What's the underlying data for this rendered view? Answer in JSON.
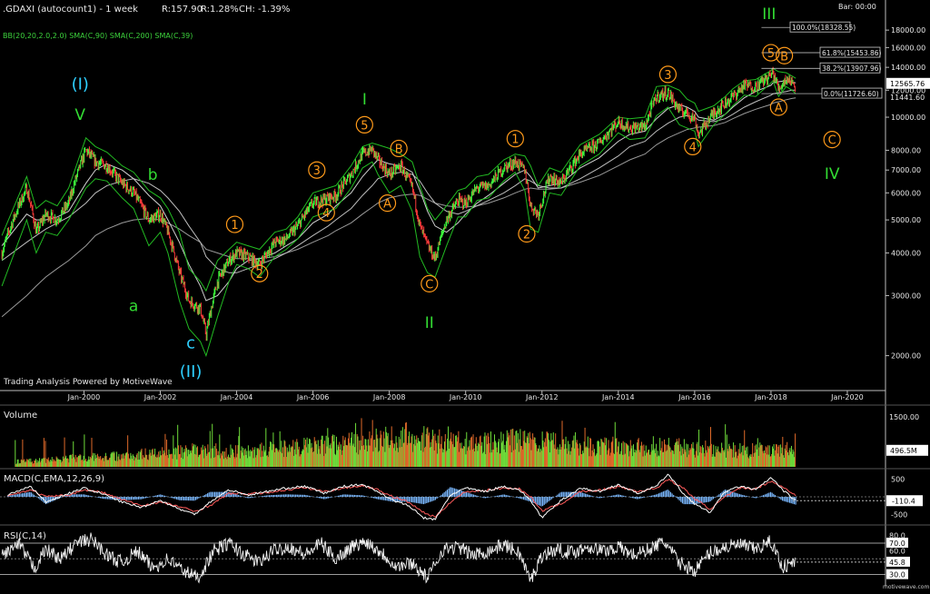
{
  "header": {
    "symbol": ".GDAXI (autocount1) - 1 week",
    "range": "R:157.90",
    "range_pct": "R:1.28%",
    "change": "CH: -1.39%",
    "indicators": "BB(20,20,2.0,2.0) SMA(C,90) SMA(C,200) SMA(C,39)",
    "bar_countdown": "Bar: 00:00"
  },
  "watermark": "Trading Analysis Powered by MotiveWave",
  "footer_brand": "motivewave.com",
  "colors": {
    "background": "#000000",
    "up_bar": "#3dff3d",
    "down_bar": "#ff3a3a",
    "orange_wave": "#ff9a1a",
    "green_wave": "#33dd33",
    "cyan_wave": "#2ed0ff",
    "boll": "#22bb22",
    "sma": "#bbbbbb"
  },
  "chart_data": [
    {
      "type": "line",
      "name": "price",
      "scale": "log",
      "ylim": [
        1600,
        21000
      ],
      "y_ticks": [
        2000,
        3000,
        4000,
        5000,
        6000,
        7000,
        8000,
        10000,
        12000,
        14000,
        16000,
        18000
      ],
      "y_tick_labels": [
        "2000.00",
        "3000.00",
        "4000.00",
        "5000.00",
        "6000.00",
        "7000.00",
        "8000.00",
        "10000.00",
        "12000.00",
        "14000.00",
        "16000.00",
        "18000.00"
      ],
      "x_ticks": [
        2000,
        2002,
        2004,
        2006,
        2008,
        2010,
        2012,
        2014,
        2016,
        2018,
        2020
      ],
      "x_tick_labels": [
        "Jan-2000",
        "Jan-2002",
        "Jan-2004",
        "Jan-2006",
        "Jan-2008",
        "Jan-2010",
        "Jan-2012",
        "Jan-2014",
        "Jan-2016",
        "Jan-2018",
        "Jan-2020"
      ],
      "xlim": [
        1997.8,
        2021.0
      ],
      "x": [
        1997.85,
        1998.5,
        1998.75,
        1999.0,
        1999.3,
        1999.6,
        2000.05,
        2000.3,
        2000.6,
        2001.0,
        2001.3,
        2001.7,
        2002.0,
        2002.2,
        2002.5,
        2002.75,
        2003.05,
        2003.2,
        2003.5,
        2003.8,
        2004.0,
        2004.3,
        2004.6,
        2005.0,
        2005.3,
        2005.6,
        2006.0,
        2006.4,
        2006.6,
        2007.0,
        2007.3,
        2007.55,
        2007.7,
        2008.0,
        2008.3,
        2008.6,
        2008.8,
        2009.0,
        2009.2,
        2009.5,
        2009.8,
        2010.0,
        2010.3,
        2010.6,
        2011.0,
        2011.3,
        2011.55,
        2011.7,
        2011.9,
        2012.2,
        2012.5,
        2013.0,
        2013.5,
        2014.0,
        2014.3,
        2014.7,
        2015.0,
        2015.3,
        2015.6,
        2015.8,
        2016.0,
        2016.1,
        2016.5,
        2016.8,
        2017.0,
        2017.3,
        2017.6,
        2018.0,
        2018.05,
        2018.2,
        2018.4,
        2018.55,
        2018.65
      ],
      "close": [
        4000,
        6200,
        4600,
        5200,
        5000,
        5600,
        8000,
        7400,
        7200,
        6400,
        6000,
        5000,
        5200,
        4600,
        3500,
        2900,
        2750,
        2300,
        3300,
        3800,
        4000,
        3900,
        3700,
        4300,
        4400,
        4800,
        5600,
        5800,
        5900,
        6800,
        7800,
        8050,
        7500,
        6800,
        7200,
        6200,
        4800,
        4200,
        3850,
        5000,
        5700,
        5600,
        6200,
        6300,
        7100,
        7400,
        7000,
        5500,
        5200,
        6700,
        6400,
        7800,
        8400,
        9700,
        9300,
        9400,
        11500,
        11800,
        10500,
        10300,
        9900,
        8900,
        10300,
        11000,
        11500,
        12400,
        12300,
        13300,
        13500,
        12100,
        13000,
        12700,
        12400
      ],
      "bollinger_upper": [
        4500,
        6700,
        5400,
        5700,
        5500,
        6200,
        8700,
        8200,
        7900,
        7200,
        6900,
        6100,
        5800,
        5400,
        4600,
        3600,
        3300,
        3100,
        3800,
        4100,
        4300,
        4200,
        4100,
        4600,
        4700,
        5100,
        6000,
        6200,
        6300,
        7200,
        8200,
        8400,
        8300,
        8100,
        7800,
        7400,
        6300,
        5400,
        5000,
        5500,
        6100,
        6200,
        6700,
        6800,
        7500,
        7800,
        7700,
        7200,
        6300,
        7100,
        6900,
        8300,
        8900,
        10000,
        9900,
        10000,
        12300,
        12400,
        12000,
        11300,
        11000,
        10400,
        10800,
        11500,
        12100,
        12800,
        12900,
        13700,
        13900,
        13600,
        13500,
        13200,
        13000
      ],
      "bollinger_lower": [
        3200,
        5000,
        4000,
        4600,
        4500,
        5000,
        6200,
        6600,
        6500,
        5800,
        5400,
        4200,
        4600,
        4000,
        2900,
        2400,
        2200,
        2000,
        2600,
        3300,
        3700,
        3600,
        3400,
        3900,
        4100,
        4400,
        5100,
        5300,
        5400,
        6200,
        7100,
        7400,
        6800,
        6000,
        6300,
        5300,
        3900,
        3500,
        3400,
        4200,
        5100,
        5100,
        5700,
        5800,
        6500,
        6900,
        6100,
        4700,
        4600,
        6000,
        5900,
        7200,
        7800,
        9000,
        8600,
        8700,
        10100,
        10700,
        9500,
        9300,
        9100,
        8200,
        9500,
        10200,
        10800,
        11600,
        11500,
        12600,
        12800,
        11500,
        12300,
        12000,
        11700
      ],
      "sma_39": [
        4200,
        5200,
        5000,
        5000,
        5100,
        5300,
        6400,
        7000,
        7300,
        7000,
        6600,
        5900,
        5500,
        5000,
        4300,
        3700,
        3200,
        2900,
        3000,
        3300,
        3600,
        3800,
        3850,
        4000,
        4200,
        4400,
        4900,
        5200,
        5500,
        6000,
        6700,
        7200,
        7500,
        7300,
        7200,
        6900,
        6100,
        5300,
        4800,
        4600,
        4900,
        5200,
        5600,
        5900,
        6400,
        6800,
        7000,
        6700,
        6200,
        6300,
        6400,
        7100,
        7600,
        8500,
        8900,
        9100,
        9900,
        10600,
        10900,
        10700,
        10400,
        10000,
        9800,
        10200,
        10700,
        11400,
        11900,
        12400,
        12600,
        12700,
        12800,
        12700,
        12600
      ],
      "sma_90": [
        3800,
        4300,
        4500,
        4700,
        4900,
        5100,
        5600,
        6000,
        6300,
        6500,
        6600,
        6400,
        6100,
        5800,
        5300,
        4800,
        4300,
        3900,
        3600,
        3500,
        3500,
        3600,
        3700,
        3850,
        4000,
        4200,
        4500,
        4800,
        5000,
        5400,
        5900,
        6300,
        6600,
        6800,
        6900,
        6800,
        6500,
        6000,
        5600,
        5300,
        5200,
        5300,
        5500,
        5700,
        6000,
        6300,
        6600,
        6500,
        6300,
        6200,
        6200,
        6600,
        7100,
        7700,
        8200,
        8500,
        9100,
        9600,
        10000,
        10100,
        10000,
        9800,
        9700,
        9900,
        10200,
        10700,
        11100,
        11600,
        11700,
        11800,
        11900,
        12000,
        12000
      ],
      "sma_200": [
        2600,
        3000,
        3200,
        3400,
        3600,
        3800,
        4200,
        4500,
        4700,
        4900,
        5000,
        5050,
        5000,
        4900,
        4700,
        4500,
        4300,
        4100,
        4000,
        3900,
        3850,
        3850,
        3850,
        3900,
        4000,
        4100,
        4300,
        4500,
        4650,
        4900,
        5200,
        5450,
        5600,
        5800,
        5900,
        5950,
        5900,
        5750,
        5600,
        5500,
        5450,
        5450,
        5500,
        5600,
        5800,
        6000,
        6150,
        6200,
        6150,
        6150,
        6200,
        6450,
        6750,
        7200,
        7500,
        7800,
        8300,
        8700,
        9000,
        9200,
        9300,
        9350,
        9450,
        9650,
        9900,
        10250,
        10550,
        10900,
        11000,
        11100,
        11250,
        11350,
        11400
      ]
    },
    {
      "type": "table",
      "name": "fibonacci_levels",
      "levels": [
        {
          "label": "100.0%(18328.55)",
          "value": 18328.55
        },
        {
          "label": "61.8%(15453.86)",
          "value": 15453.86
        },
        {
          "label": "38.2%(13907.96)",
          "value": 13907.96
        },
        {
          "label": "0.0%(11726.60)",
          "value": 11726.6
        }
      ]
    },
    {
      "type": "table",
      "name": "price_labels",
      "last_price": "12565.76",
      "last_price_value": 12565.76,
      "fib_low_label": "11441.60",
      "fib_low_value": 11441.6
    },
    {
      "type": "table",
      "name": "wave_labels",
      "labels": [
        {
          "text": "(I)",
          "x": 1999.9,
          "y": 12500,
          "color": "cyan"
        },
        {
          "text": "V",
          "x": 1999.9,
          "y": 10200,
          "color": "green"
        },
        {
          "text": "b",
          "x": 2001.8,
          "y": 6800,
          "color": "green"
        },
        {
          "text": "a",
          "x": 2001.3,
          "y": 2800,
          "color": "green"
        },
        {
          "text": "c",
          "x": 2002.8,
          "y": 2180,
          "color": "cyan"
        },
        {
          "text": "(II)",
          "x": 2002.8,
          "y": 1800,
          "color": "cyan"
        },
        {
          "text": "1",
          "x": 2003.95,
          "y": 4850,
          "color": "orange",
          "circled": true
        },
        {
          "text": "2",
          "x": 2004.6,
          "y": 3480,
          "color": "orange",
          "circled": true
        },
        {
          "text": "3",
          "x": 2006.1,
          "y": 7000,
          "color": "orange",
          "circled": true
        },
        {
          "text": "4",
          "x": 2006.35,
          "y": 5250,
          "color": "orange",
          "circled": true
        },
        {
          "text": "5",
          "x": 2007.35,
          "y": 9500,
          "color": "orange",
          "circled": true
        },
        {
          "text": "I",
          "x": 2007.35,
          "y": 11300,
          "color": "green"
        },
        {
          "text": "B",
          "x": 2008.25,
          "y": 8100,
          "color": "orange",
          "circled": true
        },
        {
          "text": "A",
          "x": 2007.95,
          "y": 5600,
          "color": "orange",
          "circled": true
        },
        {
          "text": "C",
          "x": 2009.05,
          "y": 3250,
          "color": "orange",
          "circled": true
        },
        {
          "text": "II",
          "x": 2009.05,
          "y": 2500,
          "color": "green"
        },
        {
          "text": "1",
          "x": 2011.3,
          "y": 8650,
          "color": "orange",
          "circled": true
        },
        {
          "text": "2",
          "x": 2011.6,
          "y": 4550,
          "color": "orange",
          "circled": true
        },
        {
          "text": "3",
          "x": 2015.3,
          "y": 13350,
          "color": "orange",
          "circled": true
        },
        {
          "text": "4",
          "x": 2015.95,
          "y": 8200,
          "color": "orange",
          "circled": true
        },
        {
          "text": "5",
          "x": 2018.0,
          "y": 15450,
          "color": "orange",
          "circled": true
        },
        {
          "text": "B",
          "x": 2018.35,
          "y": 15150,
          "color": "orange",
          "circled": true
        },
        {
          "text": "A",
          "x": 2018.2,
          "y": 10700,
          "color": "orange",
          "circled": true
        },
        {
          "text": "III",
          "x": 2017.95,
          "y": 20100,
          "color": "green"
        },
        {
          "text": "C",
          "x": 2019.6,
          "y": 8600,
          "color": "orange",
          "circled": true
        },
        {
          "text": "IV",
          "x": 2019.6,
          "y": 6850,
          "color": "green"
        }
      ]
    },
    {
      "type": "bar",
      "name": "Volume",
      "ylim": [
        0,
        1800
      ],
      "y_ticks": [
        1500
      ],
      "y_tick_labels": [
        "1500.00"
      ],
      "last_value_label": "496.5M",
      "last_value": 496.5,
      "x": [
        1998.5,
        1999.0,
        1999.5,
        2000.0,
        2000.5,
        2001.0,
        2001.5,
        2002.0,
        2002.5,
        2003.0,
        2003.5,
        2004.0,
        2004.5,
        2005.0,
        2005.5,
        2006.0,
        2006.5,
        2007.0,
        2007.5,
        2008.0,
        2008.5,
        2009.0,
        2009.5,
        2010.0,
        2010.5,
        2011.0,
        2011.5,
        2012.0,
        2012.5,
        2013.0,
        2013.5,
        2014.0,
        2014.5,
        2015.0,
        2015.5,
        2016.0,
        2016.5,
        2017.0,
        2017.5,
        2018.0,
        2018.5
      ],
      "values": [
        160,
        200,
        240,
        280,
        300,
        330,
        380,
        420,
        450,
        480,
        470,
        460,
        480,
        520,
        560,
        600,
        650,
        700,
        760,
        850,
        900,
        800,
        760,
        700,
        720,
        760,
        800,
        720,
        680,
        640,
        620,
        600,
        580,
        620,
        600,
        560,
        520,
        500,
        480,
        540,
        500
      ]
    },
    {
      "type": "line",
      "name": "MACD(C,EMA,12,26,9)",
      "ylim": [
        -700,
        700
      ],
      "y_ticks": [
        500,
        -500
      ],
      "y_tick_labels": [
        "500",
        "-500"
      ],
      "last_value_label": "-110.4",
      "last_value": -110.4,
      "x": [
        1998.0,
        1998.6,
        1999.0,
        1999.6,
        2000.0,
        2000.5,
        2001.0,
        2001.5,
        2002.0,
        2002.5,
        2002.9,
        2003.3,
        2003.8,
        2004.3,
        2004.8,
        2005.3,
        2005.8,
        2006.3,
        2006.8,
        2007.3,
        2007.7,
        2008.1,
        2008.5,
        2008.9,
        2009.2,
        2009.6,
        2010.0,
        2010.5,
        2011.0,
        2011.4,
        2011.7,
        2012.0,
        2012.5,
        2013.0,
        2013.5,
        2014.0,
        2014.5,
        2015.0,
        2015.3,
        2015.7,
        2016.0,
        2016.4,
        2016.8,
        2017.2,
        2017.6,
        2018.0,
        2018.3,
        2018.65
      ],
      "macd": [
        50,
        300,
        -150,
        100,
        250,
        80,
        -150,
        -300,
        -100,
        -350,
        -500,
        -150,
        200,
        50,
        150,
        250,
        300,
        100,
        300,
        350,
        150,
        -100,
        -250,
        -600,
        -650,
        50,
        250,
        150,
        300,
        200,
        -100,
        -600,
        -100,
        250,
        150,
        350,
        100,
        300,
        650,
        100,
        -200,
        -450,
        150,
        300,
        200,
        550,
        200,
        -110
      ],
      "signal": [
        30,
        200,
        0,
        50,
        200,
        120,
        -80,
        -250,
        -150,
        -280,
        -420,
        -250,
        100,
        80,
        120,
        200,
        260,
        150,
        250,
        320,
        200,
        0,
        -150,
        -450,
        -580,
        -150,
        150,
        180,
        250,
        230,
        0,
        -400,
        -200,
        150,
        180,
        300,
        150,
        250,
        500,
        250,
        -50,
        -350,
        0,
        250,
        230,
        450,
        280,
        50
      ]
    },
    {
      "type": "line",
      "name": "RSI(C,14)",
      "ylim": [
        18,
        85
      ],
      "y_ticks": [
        80.0,
        70.0,
        60.0,
        45.8,
        30.0
      ],
      "y_tick_labels": [
        "80.0",
        "70.0",
        "60.0",
        "45.8",
        "30.0"
      ],
      "reference_lines": [
        70,
        30
      ],
      "last_value_label": "45.8",
      "last_value": 45.8,
      "x": [
        1997.85,
        1998.3,
        1998.7,
        1999.0,
        1999.4,
        1999.8,
        2000.2,
        2000.6,
        2001.0,
        2001.4,
        2001.8,
        2002.2,
        2002.6,
        2003.0,
        2003.4,
        2003.8,
        2004.2,
        2004.6,
        2005.0,
        2005.4,
        2005.8,
        2006.2,
        2006.6,
        2007.0,
        2007.4,
        2007.8,
        2008.2,
        2008.6,
        2009.0,
        2009.4,
        2009.8,
        2010.2,
        2010.6,
        2011.0,
        2011.4,
        2011.7,
        2012.0,
        2012.4,
        2012.8,
        2013.2,
        2013.6,
        2014.0,
        2014.4,
        2014.8,
        2015.2,
        2015.6,
        2016.0,
        2016.4,
        2016.8,
        2017.2,
        2017.6,
        2018.0,
        2018.3,
        2018.65
      ],
      "values": [
        55,
        68,
        38,
        62,
        50,
        70,
        75,
        55,
        45,
        60,
        38,
        50,
        35,
        26,
        60,
        70,
        55,
        45,
        62,
        65,
        55,
        70,
        50,
        65,
        72,
        58,
        40,
        45,
        25,
        62,
        65,
        55,
        60,
        68,
        58,
        22,
        55,
        62,
        58,
        66,
        60,
        65,
        55,
        62,
        72,
        45,
        35,
        58,
        65,
        68,
        62,
        72,
        40,
        46
      ]
    }
  ]
}
